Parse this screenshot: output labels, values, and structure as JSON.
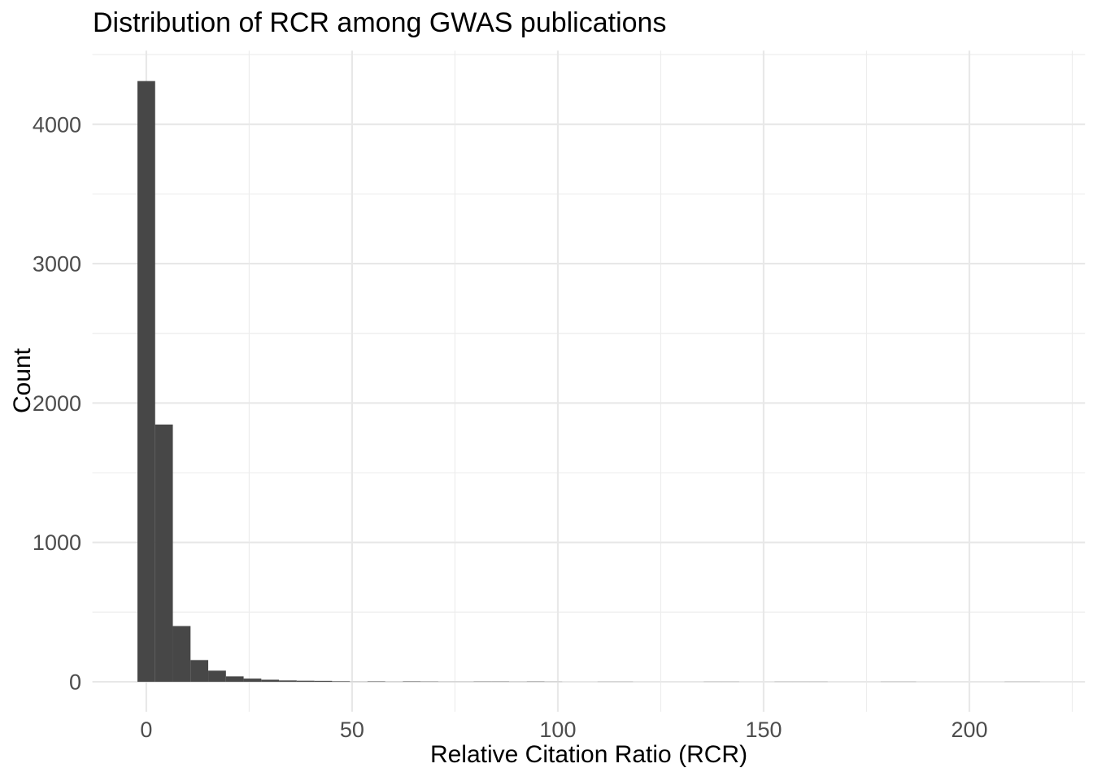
{
  "title": "Distribution of RCR among GWAS publications",
  "chart_data": {
    "type": "bar",
    "subtype": "histogram",
    "title": "Distribution of RCR among GWAS publications",
    "xlabel": "Relative Citation Ratio (RCR)",
    "ylabel": "Count",
    "grid": "on",
    "legend": "none",
    "binwidth": 4.3,
    "xlim": [
      -13.1,
      228.1
    ],
    "ylim": [
      -215,
      4528
    ],
    "x_breaks": [
      0,
      50,
      100,
      150,
      200
    ],
    "x_minor_breaks": [
      25,
      75,
      125,
      175,
      225
    ],
    "y_breaks": [
      0,
      1000,
      2000,
      3000,
      4000
    ],
    "y_minor_breaks": [
      500,
      1500,
      2500,
      3500,
      4500
    ],
    "x_tick_labels": [
      "0",
      "50",
      "100",
      "150",
      "200"
    ],
    "y_tick_labels": [
      "0",
      "1000",
      "2000",
      "3000",
      "4000"
    ],
    "bins": [
      {
        "x": 0,
        "count": 4310
      },
      {
        "x": 4.3,
        "count": 1846
      },
      {
        "x": 8.6,
        "count": 400
      },
      {
        "x": 12.9,
        "count": 156
      },
      {
        "x": 17.2,
        "count": 80
      },
      {
        "x": 21.5,
        "count": 39
      },
      {
        "x": 25.8,
        "count": 23
      },
      {
        "x": 30.1,
        "count": 15
      },
      {
        "x": 34.4,
        "count": 10
      },
      {
        "x": 38.7,
        "count": 8
      },
      {
        "x": 43,
        "count": 7
      },
      {
        "x": 47.3,
        "count": 4
      },
      {
        "x": 51.6,
        "count": 1
      },
      {
        "x": 55.9,
        "count": 3
      },
      {
        "x": 60.2,
        "count": 1
      },
      {
        "x": 64.5,
        "count": 3
      },
      {
        "x": 68.8,
        "count": 2
      },
      {
        "x": 73.1,
        "count": 1
      },
      {
        "x": 77.4,
        "count": 1
      },
      {
        "x": 81.7,
        "count": 2
      },
      {
        "x": 86,
        "count": 2
      },
      {
        "x": 90.3,
        "count": 1
      },
      {
        "x": 94.6,
        "count": 2
      },
      {
        "x": 98.9,
        "count": 1
      },
      {
        "x": 111.8,
        "count": 1
      },
      {
        "x": 116.1,
        "count": 1
      },
      {
        "x": 137.6,
        "count": 1
      },
      {
        "x": 141.9,
        "count": 1
      },
      {
        "x": 154.8,
        "count": 1
      },
      {
        "x": 159.1,
        "count": 1
      },
      {
        "x": 163.4,
        "count": 1
      },
      {
        "x": 180.6,
        "count": 1
      },
      {
        "x": 184.9,
        "count": 1
      },
      {
        "x": 210.7,
        "count": 1
      },
      {
        "x": 215,
        "count": 1
      }
    ]
  },
  "colors": {
    "background": "#FFFFFF",
    "bar_fill": "#474747",
    "grid_major": "#E8E8E8",
    "grid_minor": "#EDEDED",
    "tick_label": "#4D4D4D",
    "title_text": "#000000"
  }
}
